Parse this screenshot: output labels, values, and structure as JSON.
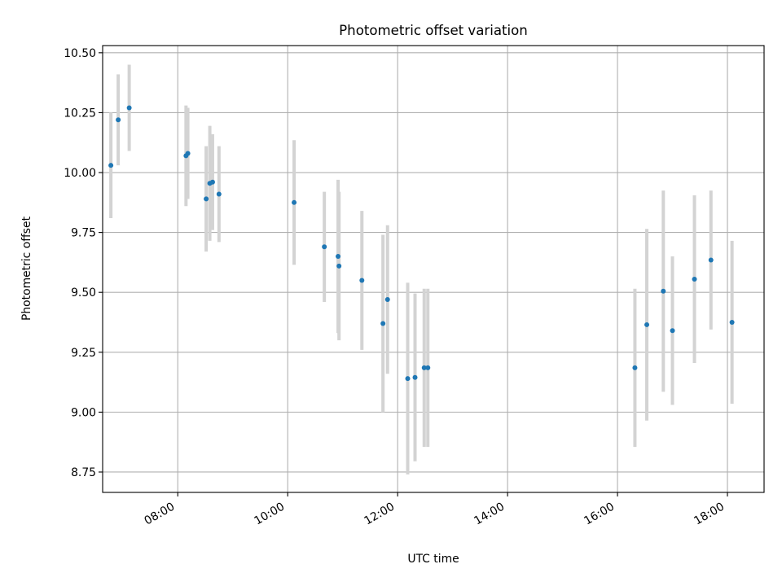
{
  "chart_data": {
    "type": "scatter",
    "title": "Photometric offset variation",
    "xlabel": "UTC time",
    "ylabel": "Photometric offset",
    "x_axis_type": "time",
    "xlim": [
      "06:38",
      "18:40"
    ],
    "ylim": [
      8.665,
      10.53
    ],
    "xticks": [
      "08:00",
      "10:00",
      "12:00",
      "14:00",
      "16:00",
      "18:00"
    ],
    "yticks": [
      "8.75",
      "9.00",
      "9.25",
      "9.50",
      "9.75",
      "10.00",
      "10.25",
      "10.50"
    ],
    "grid": true,
    "colors": {
      "points": "#1f77b4",
      "errorbars": "#d3d3d3",
      "grid": "#b0b0b0"
    },
    "series": [
      {
        "x": [
          "06:47",
          "06:55",
          "07:07",
          "08:09",
          "08:11",
          "08:31",
          "08:35",
          "08:38",
          "08:45",
          "10:07",
          "10:40",
          "10:55",
          "10:56",
          "11:21",
          "11:44",
          "11:49",
          "12:11",
          "12:19",
          "12:29",
          "12:33",
          "16:19",
          "16:32",
          "16:50",
          "17:00",
          "17:24",
          "17:42",
          "18:05"
        ],
        "y": [
          10.03,
          10.22,
          10.27,
          10.07,
          10.08,
          9.89,
          9.955,
          9.96,
          9.91,
          9.875,
          9.69,
          9.65,
          9.61,
          9.55,
          9.37,
          9.47,
          9.14,
          9.145,
          9.185,
          9.185,
          9.185,
          9.365,
          9.505,
          9.34,
          9.555,
          9.635,
          9.375
        ],
        "yerr": [
          0.22,
          0.19,
          0.18,
          0.21,
          0.19,
          0.22,
          0.24,
          0.2,
          0.2,
          0.26,
          0.23,
          0.32,
          0.31,
          0.29,
          0.37,
          0.31,
          0.4,
          0.35,
          0.33,
          0.33,
          0.33,
          0.4,
          0.42,
          0.31,
          0.35,
          0.29,
          0.34
        ]
      }
    ]
  }
}
